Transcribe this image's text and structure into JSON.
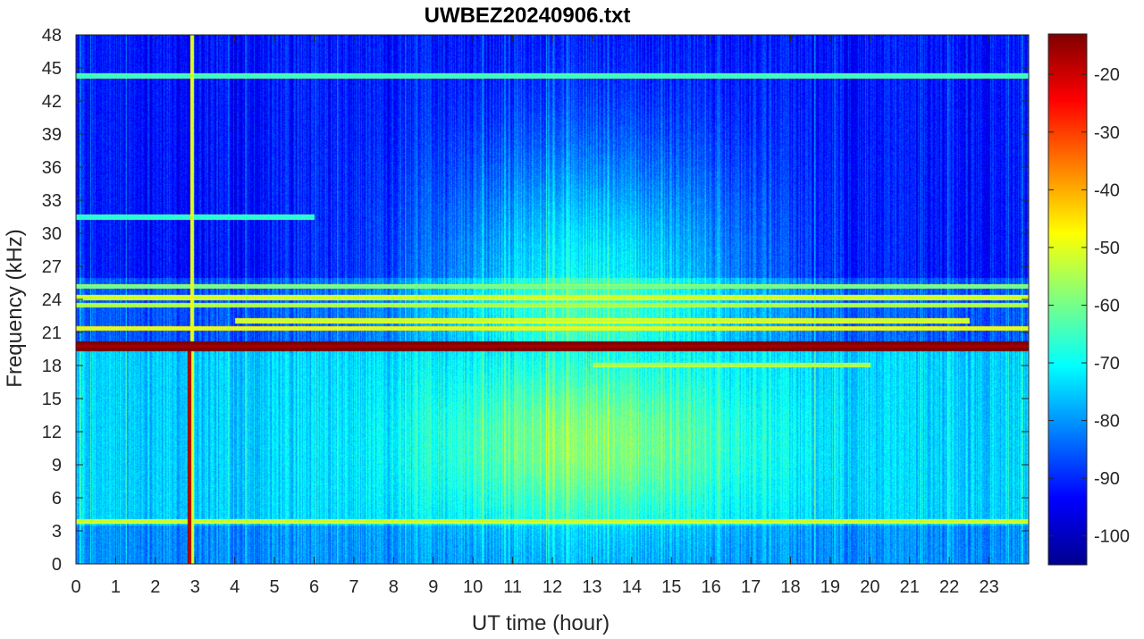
{
  "chart_data": {
    "type": "heatmap",
    "title": "UWBEZ20240906.txt",
    "xlabel": "UT time (hour)",
    "ylabel": "Frequency (kHz)",
    "xlim": [
      0,
      24
    ],
    "ylim": [
      0,
      48
    ],
    "x_ticks": [
      0,
      1,
      2,
      3,
      4,
      5,
      6,
      7,
      8,
      9,
      10,
      11,
      12,
      13,
      14,
      15,
      16,
      17,
      18,
      19,
      20,
      21,
      22,
      23
    ],
    "y_ticks": [
      0,
      3,
      6,
      9,
      12,
      15,
      18,
      21,
      24,
      27,
      30,
      33,
      36,
      39,
      42,
      45,
      48
    ],
    "colorbar": {
      "colormap": "jet",
      "range": [
        -105,
        -13
      ],
      "ticks": [
        -20,
        -30,
        -40,
        -50,
        -60,
        -70,
        -80,
        -90,
        -100
      ]
    },
    "features": {
      "narrowband_lines": [
        {
          "freq_khz": 19.8,
          "level_db": -17,
          "x_range": [
            0,
            24
          ]
        },
        {
          "freq_khz": 21.4,
          "level_db": -52,
          "x_range": [
            0,
            24
          ]
        },
        {
          "freq_khz": 22.1,
          "level_db": -55,
          "x_range": [
            4,
            22.5
          ]
        },
        {
          "freq_khz": 23.5,
          "level_db": -58,
          "x_range": [
            0,
            24
          ]
        },
        {
          "freq_khz": 24.2,
          "level_db": -55,
          "x_range": [
            0,
            24
          ]
        },
        {
          "freq_khz": 25.2,
          "level_db": -62,
          "x_range": [
            0,
            24
          ]
        },
        {
          "freq_khz": 44.3,
          "level_db": -68,
          "x_range": [
            0,
            24
          ]
        },
        {
          "freq_khz": 3.9,
          "level_db": -55,
          "x_range": [
            0,
            24
          ]
        },
        {
          "freq_khz": 31.5,
          "level_db": -70,
          "x_range": [
            0,
            6
          ]
        },
        {
          "freq_khz": 18.1,
          "level_db": -58,
          "x_range": [
            13,
            20
          ]
        }
      ],
      "vertical_bursts": [
        {
          "time_hour": 2.85,
          "level_db": -20,
          "freq_range": [
            0,
            20
          ]
        },
        {
          "time_hour": 2.92,
          "level_db": -52,
          "freq_range": [
            0,
            48
          ]
        }
      ]
    }
  }
}
